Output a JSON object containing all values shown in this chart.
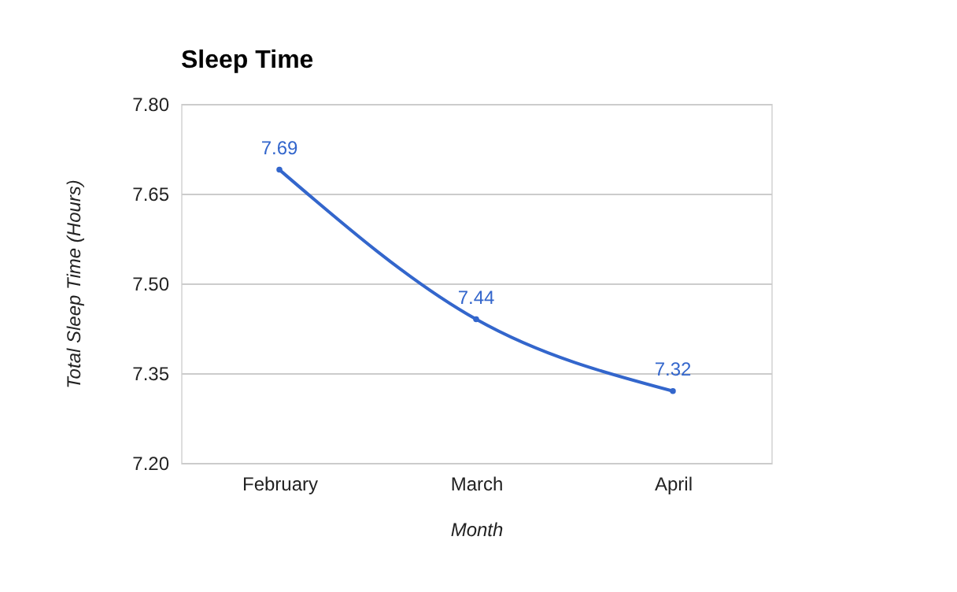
{
  "chart_data": {
    "type": "line",
    "title": "Sleep Time",
    "xlabel": "Month",
    "ylabel": "Total Sleep Time (Hours)",
    "categories": [
      "February",
      "March",
      "April"
    ],
    "series": [
      {
        "color": "#3366cc",
        "values": [
          7.69,
          7.44,
          7.32
        ]
      }
    ],
    "ylim": [
      7.2,
      7.8
    ],
    "yticks": [
      {
        "value": 7.2,
        "label": "7.20"
      },
      {
        "value": 7.35,
        "label": "7.35"
      },
      {
        "value": 7.5,
        "label": "7.50"
      },
      {
        "value": 7.65,
        "label": "7.65"
      },
      {
        "value": 7.8,
        "label": "7.80"
      }
    ],
    "grid": "y",
    "marker": "circle",
    "line_style": "solid",
    "data_labels": true,
    "legend": false
  }
}
